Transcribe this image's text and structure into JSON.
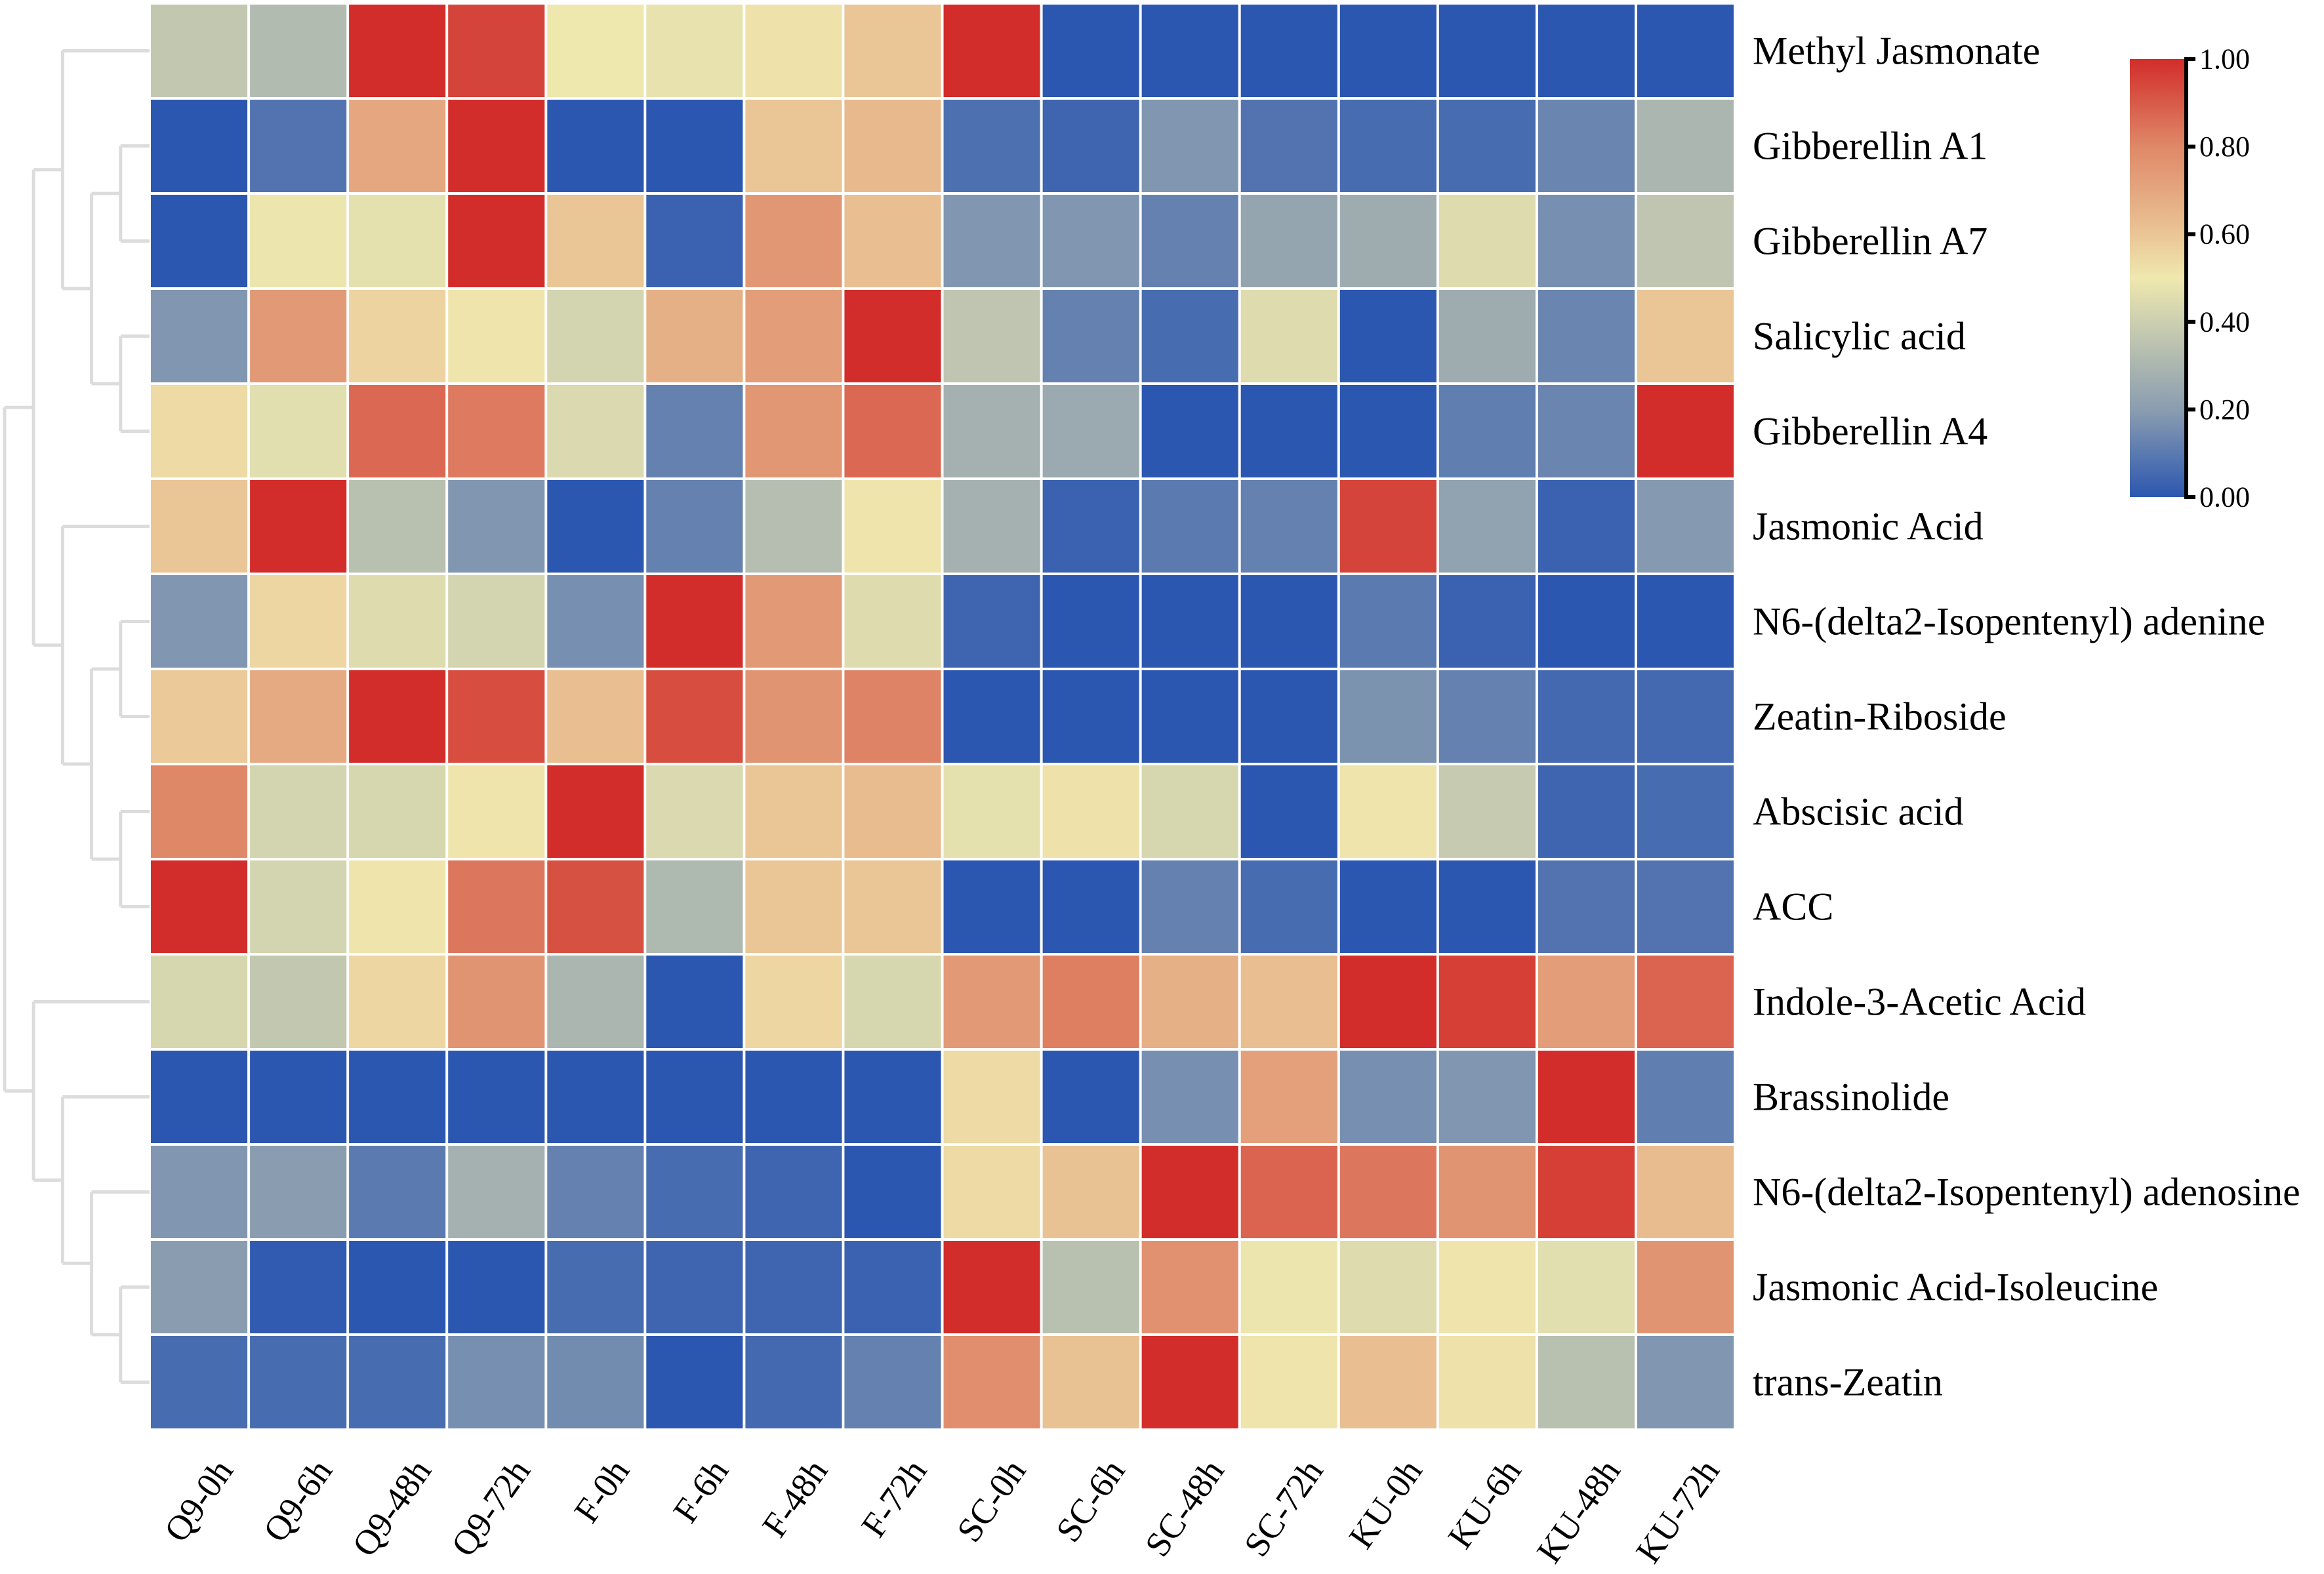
{
  "chart_data": {
    "type": "heatmap",
    "title": "",
    "xlabel": "",
    "ylabel": "",
    "columns": [
      "Q9-0h",
      "Q9-6h",
      "Q9-48h",
      "Q9-72h",
      "F-0h",
      "F-6h",
      "F-48h",
      "F-72h",
      "SC-0h",
      "SC-6h",
      "SC-48h",
      "SC-72h",
      "KU-0h",
      "KU-6h",
      "KU-48h",
      "KU-72h"
    ],
    "rows": [
      "Methyl Jasmonate",
      "Gibberellin A1",
      "Gibberellin A7",
      "Salicylic acid",
      "Gibberellin A4",
      "Jasmonic Acid",
      "N6-(delta2-Isopentenyl) adenine",
      "Zeatin-Riboside",
      "Abscisic acid",
      "ACC",
      "Indole-3-Acetic Acid",
      "Brassinolide",
      "N6-(delta2-Isopentenyl) adenosine",
      "Jasmonic Acid-Isoleucine",
      "trans-Zeatin"
    ],
    "values": [
      [
        0.37,
        0.32,
        1.0,
        0.95,
        0.5,
        0.48,
        0.52,
        0.6,
        1.0,
        0.0,
        0.0,
        0.0,
        0.0,
        0.0,
        0.0,
        0.0
      ],
      [
        0.0,
        0.08,
        0.7,
        1.0,
        0.0,
        0.0,
        0.6,
        0.64,
        0.07,
        0.04,
        0.18,
        0.08,
        0.06,
        0.06,
        0.13,
        0.3
      ],
      [
        0.0,
        0.49,
        0.47,
        1.0,
        0.6,
        0.03,
        0.75,
        0.62,
        0.18,
        0.18,
        0.12,
        0.23,
        0.26,
        0.45,
        0.16,
        0.36
      ],
      [
        0.18,
        0.74,
        0.56,
        0.51,
        0.42,
        0.67,
        0.73,
        1.0,
        0.36,
        0.12,
        0.06,
        0.45,
        0.0,
        0.26,
        0.13,
        0.6
      ],
      [
        0.54,
        0.46,
        0.87,
        0.83,
        0.44,
        0.12,
        0.75,
        0.87,
        0.28,
        0.25,
        0.0,
        0.0,
        0.0,
        0.11,
        0.13,
        1.0
      ],
      [
        0.6,
        1.0,
        0.34,
        0.18,
        0.0,
        0.12,
        0.33,
        0.51,
        0.28,
        0.03,
        0.1,
        0.12,
        0.95,
        0.22,
        0.03,
        0.19
      ],
      [
        0.18,
        0.55,
        0.45,
        0.42,
        0.16,
        1.0,
        0.74,
        0.45,
        0.04,
        0.0,
        0.0,
        0.0,
        0.1,
        0.03,
        0.0,
        0.0
      ],
      [
        0.59,
        0.69,
        1.0,
        0.93,
        0.62,
        0.93,
        0.76,
        0.81,
        0.0,
        0.0,
        0.0,
        0.0,
        0.17,
        0.12,
        0.05,
        0.05
      ],
      [
        0.8,
        0.42,
        0.43,
        0.51,
        1.0,
        0.44,
        0.6,
        0.63,
        0.47,
        0.52,
        0.43,
        0.0,
        0.51,
        0.38,
        0.04,
        0.06
      ],
      [
        1.0,
        0.42,
        0.51,
        0.84,
        0.92,
        0.31,
        0.6,
        0.6,
        0.0,
        0.0,
        0.12,
        0.06,
        0.0,
        0.0,
        0.08,
        0.08
      ],
      [
        0.43,
        0.37,
        0.55,
        0.76,
        0.3,
        0.0,
        0.55,
        0.43,
        0.74,
        0.82,
        0.67,
        0.62,
        1.0,
        0.96,
        0.73,
        0.88
      ],
      [
        0.0,
        0.0,
        0.0,
        0.0,
        0.0,
        0.0,
        0.0,
        0.0,
        0.54,
        0.0,
        0.16,
        0.72,
        0.16,
        0.18,
        1.0,
        0.11
      ],
      [
        0.18,
        0.2,
        0.1,
        0.28,
        0.12,
        0.06,
        0.04,
        0.0,
        0.54,
        0.61,
        1.0,
        0.88,
        0.84,
        0.76,
        0.96,
        0.63
      ],
      [
        0.2,
        0.01,
        0.0,
        0.0,
        0.06,
        0.04,
        0.04,
        0.03,
        1.0,
        0.34,
        0.77,
        0.49,
        0.45,
        0.51,
        0.46,
        0.76
      ],
      [
        0.06,
        0.06,
        0.06,
        0.16,
        0.15,
        0.0,
        0.05,
        0.12,
        0.78,
        0.61,
        1.0,
        0.51,
        0.62,
        0.52,
        0.34,
        0.18
      ]
    ],
    "value_range": [
      0.0,
      1.0
    ],
    "colorbar": {
      "ticks": [
        1.0,
        0.8,
        0.6,
        0.4,
        0.2,
        0.0
      ],
      "tick_labels": [
        "1.00",
        "0.80",
        "0.60",
        "0.40",
        "0.20",
        "0.00"
      ],
      "position": "top-right",
      "colormap": [
        {
          "value": 0.0,
          "color": "#2c57b0"
        },
        {
          "value": 0.2,
          "color": "#8a9db0"
        },
        {
          "value": 0.4,
          "color": "#cccfb0"
        },
        {
          "value": 0.5,
          "color": "#efe8ae"
        },
        {
          "value": 0.6,
          "color": "#eac596"
        },
        {
          "value": 0.8,
          "color": "#df8868"
        },
        {
          "value": 1.0,
          "color": "#d22d2a"
        }
      ]
    },
    "row_dendrogram": {
      "side": "left",
      "color": "#dcdcdc",
      "tree": [
        [
          [
            0,
            [
              [
                1,
                2
              ],
              [
                3,
                4
              ]
            ]
          ],
          [
            5,
            [
              [
                6,
                7
              ],
              [
                8,
                9
              ]
            ]
          ]
        ],
        [
          10,
          [
            11,
            [
              12,
              [
                13,
                14
              ]
            ]
          ]
        ]
      ]
    },
    "grid": false,
    "cell_border_color": "#ffffff"
  }
}
